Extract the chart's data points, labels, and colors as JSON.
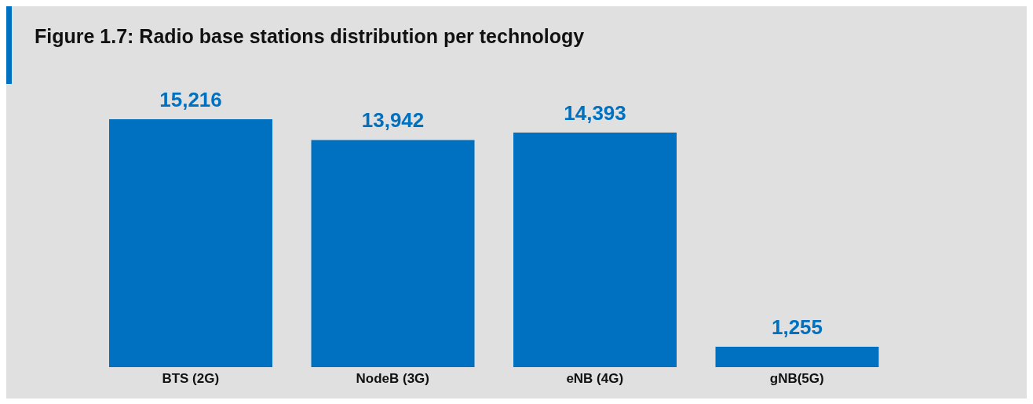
{
  "chart_data": {
    "type": "bar",
    "title": "Figure 1.7: Radio base stations distribution per technology",
    "categories": [
      "BTS (2G)",
      "NodeB (3G)",
      "eNB (4G)",
      "gNB(5G)"
    ],
    "values": [
      15216,
      13942,
      14393,
      1255
    ],
    "value_labels": [
      "15,216",
      "13,942",
      "14,393",
      "1,255"
    ],
    "color": "#0070c0",
    "grid": false,
    "legend": false
  }
}
